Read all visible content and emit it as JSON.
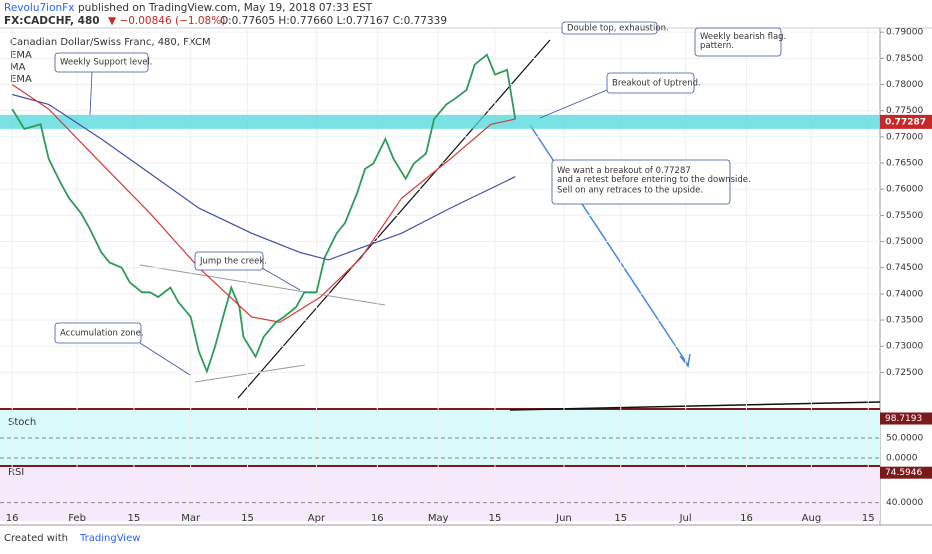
{
  "header": {
    "author": "Revolu7ionFx",
    "published": "published on TradingView.com, May 19, 2018 07:33 EST",
    "symbol": "FX:CADCHF, 480",
    "change": "▼ −0.00846 (−1.08%)",
    "ohlc": "O:0.77605 H:0.77660 L:0.77167 C:0.77339"
  },
  "footer": {
    "created": "Created with",
    "brand": "TradingView"
  },
  "chart_data": {
    "type": "line",
    "title": "Canadian Dollar/Swiss Franc, 480, FXCM",
    "indicators": [
      "EMA",
      "MA",
      "EMA"
    ],
    "xlim": [
      13,
      229.9
    ],
    "xticks": [
      {
        "value": 16,
        "label": "16"
      },
      {
        "value": 32,
        "label": "Feb"
      },
      {
        "value": 46,
        "label": "15"
      },
      {
        "value": 60,
        "label": "Mar"
      },
      {
        "value": 74,
        "label": "15"
      },
      {
        "value": 91,
        "label": "Apr"
      },
      {
        "value": 106,
        "label": "16"
      },
      {
        "value": 121,
        "label": "May"
      },
      {
        "value": 135,
        "label": "15"
      },
      {
        "value": 152,
        "label": "Jun"
      },
      {
        "value": 166,
        "label": "15"
      },
      {
        "value": 182,
        "label": "Jul"
      },
      {
        "value": 197,
        "label": "16"
      },
      {
        "value": 213,
        "label": "Aug"
      },
      {
        "value": 227,
        "label": "15"
      }
    ],
    "ylim": [
      0.7182,
      0.7908
    ],
    "yticks": [
      {
        "value": 0.725,
        "label": "0.72500"
      },
      {
        "value": 0.73,
        "label": "0.73000"
      },
      {
        "value": 0.735,
        "label": "0.73500"
      },
      {
        "value": 0.74,
        "label": "0.74000"
      },
      {
        "value": 0.745,
        "label": "0.74500"
      },
      {
        "value": 0.75,
        "label": "0.75000"
      },
      {
        "value": 0.755,
        "label": "0.75500"
      },
      {
        "value": 0.76,
        "label": "0.76000"
      },
      {
        "value": 0.765,
        "label": "0.76500"
      },
      {
        "value": 0.77,
        "label": "0.77000"
      },
      {
        "value": 0.775,
        "label": "0.77500"
      },
      {
        "value": 0.78,
        "label": "0.78000"
      },
      {
        "value": 0.785,
        "label": "0.78500"
      },
      {
        "value": 0.79,
        "label": "0.79000"
      }
    ],
    "level": {
      "value": 0.77287,
      "label": "0.77287",
      "color": "#4dd8dc"
    },
    "series": [
      {
        "name": "CADCHF",
        "color": "#2e9b57",
        "x": [
          16,
          19,
          23,
          25,
          28,
          30,
          33,
          35,
          38,
          40,
          43,
          45,
          48,
          50,
          52,
          55,
          57,
          60,
          62,
          64,
          66,
          68,
          70,
          72,
          73,
          76,
          78,
          81,
          83,
          86,
          88,
          91,
          93,
          96,
          98,
          101,
          103,
          105,
          108,
          110,
          113,
          115,
          118,
          120,
          123,
          125,
          128,
          130,
          133,
          135,
          138,
          140
        ],
        "values": [
          0.7753,
          0.7715,
          0.7724,
          0.7658,
          0.7611,
          0.7583,
          0.7554,
          0.7526,
          0.7479,
          0.746,
          0.745,
          0.7422,
          0.7403,
          0.7403,
          0.7394,
          0.7412,
          0.7384,
          0.7356,
          0.729,
          0.7252,
          0.7299,
          0.7356,
          0.7412,
          0.7375,
          0.7318,
          0.728,
          0.7318,
          0.7346,
          0.7356,
          0.7375,
          0.7403,
          0.7403,
          0.7469,
          0.7516,
          0.7535,
          0.7592,
          0.7639,
          0.7649,
          0.7696,
          0.7658,
          0.762,
          0.7649,
          0.7668,
          0.7734,
          0.7762,
          0.7772,
          0.779,
          0.7838,
          0.7857,
          0.7819,
          0.7828,
          0.7734
        ]
      },
      {
        "name": "MA",
        "color": "#3f51a8",
        "x": [
          16,
          25,
          38,
          50,
          62,
          75,
          87,
          94,
          102,
          112,
          124,
          140
        ],
        "values": [
          0.7781,
          0.7762,
          0.7696,
          0.763,
          0.7564,
          0.7516,
          0.7479,
          0.7465,
          0.7488,
          0.7516,
          0.7564,
          0.7624
        ]
      },
      {
        "name": "EMA",
        "color": "#d63a3a",
        "x": [
          16,
          25,
          38,
          50,
          62,
          75,
          82,
          92,
          102,
          112,
          124,
          134,
          140
        ],
        "values": [
          0.78,
          0.7753,
          0.7649,
          0.7554,
          0.745,
          0.7356,
          0.7346,
          0.7394,
          0.7469,
          0.7583,
          0.7658,
          0.7724,
          0.7734
        ]
      }
    ],
    "annotations": [
      "Weekly Support level.",
      "Jump the creek.",
      "Accumulation zone.",
      "Breakout of Uptrend.",
      "We want a breakout of 0.77287 and a retest before entering to the downside.",
      "Sell on any retraces to the upside.",
      "Weekly bearish flag. pattern.",
      "Double top, exhaustion."
    ],
    "stoch": {
      "name": "Stoch",
      "yticks": [
        {
          "value": 50,
          "label": "50.0000"
        },
        {
          "value": 0,
          "label": "0.0000"
        }
      ],
      "last": {
        "value": 98.7193,
        "label": "98.7193"
      }
    },
    "rsi": {
      "name": "RSI",
      "yticks": [
        {
          "value": 40,
          "label": "40.0000"
        }
      ],
      "last": {
        "value": 74.5946,
        "label": "74.5946"
      }
    }
  }
}
